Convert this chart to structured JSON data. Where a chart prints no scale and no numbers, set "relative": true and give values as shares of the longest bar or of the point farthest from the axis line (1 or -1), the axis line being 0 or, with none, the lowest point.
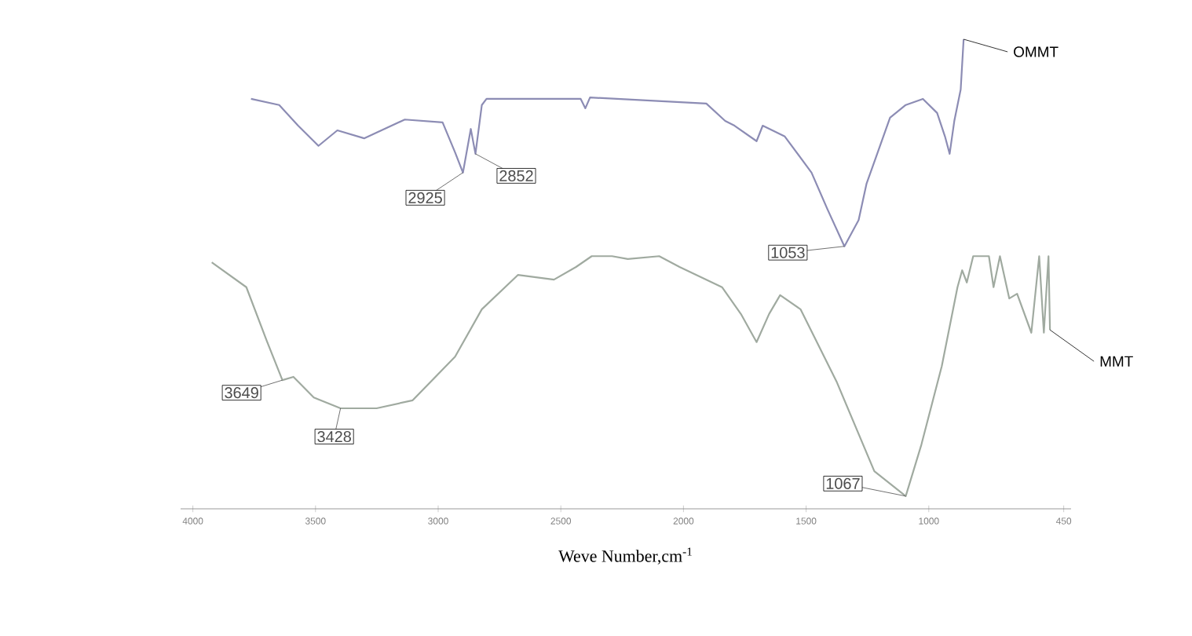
{
  "chart_data": {
    "type": "line",
    "relative": true,
    "xlabel": "Weve Number,cm$^{-1}$",
    "xlim": [
      4050,
      420
    ],
    "xticks": [
      4000,
      3500,
      3000,
      2500,
      2000,
      1500,
      1000,
      450
    ],
    "tick_labels": "x",
    "grid": false,
    "legend": false,
    "marker": "none",
    "line_style": "solid",
    "series": [
      {
        "name": "OMMT",
        "color": "#8c8cb4",
        "x": [
          3763,
          3648,
          3571,
          3488,
          3411,
          3302,
          3136,
          2982,
          2931,
          2899,
          2867,
          2848,
          2822,
          2803,
          2419,
          2400,
          2381,
          1907,
          1830,
          1792,
          1702,
          1677,
          1587,
          1478,
          1414,
          1344,
          1286,
          1254,
          1222,
          1158,
          1094,
          1024,
          966,
          934,
          915,
          896,
          870,
          858
        ],
        "values": [
          0.873,
          0.86,
          0.816,
          0.773,
          0.806,
          0.789,
          0.829,
          0.823,
          0.759,
          0.716,
          0.809,
          0.756,
          0.86,
          0.873,
          0.873,
          0.853,
          0.876,
          0.863,
          0.826,
          0.816,
          0.783,
          0.816,
          0.793,
          0.716,
          0.639,
          0.559,
          0.615,
          0.692,
          0.739,
          0.833,
          0.86,
          0.873,
          0.843,
          0.793,
          0.756,
          0.826,
          0.893,
          1.0
        ]
      },
      {
        "name": "MMT",
        "color": "#a0aaa0",
        "x": [
          3923,
          3782,
          3699,
          3635,
          3590,
          3507,
          3398,
          3251,
          3104,
          2931,
          2822,
          2675,
          2528,
          2438,
          2374,
          2291,
          2227,
          2099,
          2016,
          1843,
          1766,
          1702,
          1651,
          1606,
          1523,
          1376,
          1222,
          1094,
          1030,
          947,
          883,
          864,
          845,
          819,
          755,
          736,
          710,
          672,
          640,
          582,
          550,
          531,
          512,
          506
        ],
        "values": [
          0.525,
          0.472,
          0.358,
          0.274,
          0.281,
          0.237,
          0.214,
          0.214,
          0.231,
          0.324,
          0.425,
          0.498,
          0.488,
          0.515,
          0.538,
          0.538,
          0.532,
          0.538,
          0.515,
          0.472,
          0.415,
          0.355,
          0.415,
          0.455,
          0.425,
          0.271,
          0.08,
          0.027,
          0.137,
          0.304,
          0.472,
          0.508,
          0.482,
          0.538,
          0.538,
          0.472,
          0.538,
          0.448,
          0.458,
          0.375,
          0.538,
          0.375,
          0.538,
          0.381
        ]
      }
    ],
    "annotations": [
      {
        "text": "2925",
        "x": 2899,
        "y": 0.716
      },
      {
        "text": "2852",
        "x": 2848,
        "y": 0.756
      },
      {
        "text": "1053",
        "x": 1344,
        "y": 0.559
      },
      {
        "text": "3649",
        "x": 3635,
        "y": 0.274
      },
      {
        "text": "3428",
        "x": 3398,
        "y": 0.214
      },
      {
        "text": "1067",
        "x": 1094,
        "y": 0.027
      }
    ]
  }
}
